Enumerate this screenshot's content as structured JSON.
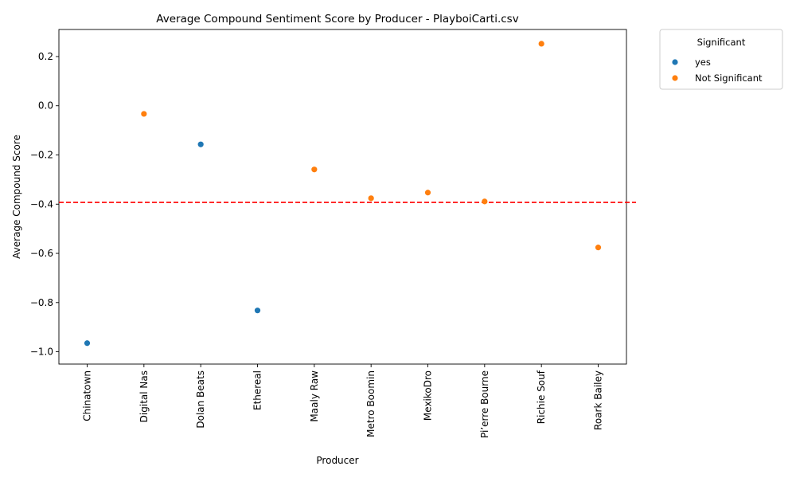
{
  "chart_data": {
    "type": "scatter",
    "title": "Average Compound Sentiment Score by Producer - PlayboiCarti.csv",
    "xlabel": "Producer",
    "ylabel": "Average Compound Score",
    "categories": [
      "Chinatown",
      "Digital Nas",
      "Dolan Beats",
      "Ethereal",
      "Maaly Raw",
      "Metro Boomin",
      "MexikoDro",
      "Pi’erre Bourne",
      "Richie Souf",
      "Roark Bailey"
    ],
    "points": [
      {
        "producer": "Chinatown",
        "value": -0.965,
        "group": "yes"
      },
      {
        "producer": "Digital Nas",
        "value": -0.033,
        "group": "Not Significant"
      },
      {
        "producer": "Dolan Beats",
        "value": -0.157,
        "group": "yes"
      },
      {
        "producer": "Ethereal",
        "value": -0.832,
        "group": "yes"
      },
      {
        "producer": "Maaly Raw",
        "value": -0.259,
        "group": "Not Significant"
      },
      {
        "producer": "Metro Boomin",
        "value": -0.376,
        "group": "Not Significant"
      },
      {
        "producer": "MexikoDro",
        "value": -0.353,
        "group": "Not Significant"
      },
      {
        "producer": "Pi’erre Bourne",
        "value": -0.389,
        "group": "Not Significant"
      },
      {
        "producer": "Richie Souf",
        "value": 0.252,
        "group": "Not Significant"
      },
      {
        "producer": "Roark Bailey",
        "value": -0.576,
        "group": "Not Significant"
      }
    ],
    "reference_line": {
      "value": -0.393,
      "color": "#ff0000",
      "style": "dashed"
    },
    "ylim": [
      -1.05,
      0.31
    ],
    "yticks": [
      0.2,
      0.0,
      -0.2,
      -0.4,
      -0.6,
      -0.8,
      -1.0
    ],
    "ytick_labels": [
      "0.2",
      "0.0",
      "−0.2",
      "−0.4",
      "−0.6",
      "−0.8",
      "−1.0"
    ],
    "grid": false,
    "legend": {
      "title": "Significant",
      "placement": "outside-top-right",
      "entries": [
        {
          "label": "yes",
          "color": "#1f77b4"
        },
        {
          "label": "Not Significant",
          "color": "#ff7f0e"
        }
      ]
    }
  }
}
